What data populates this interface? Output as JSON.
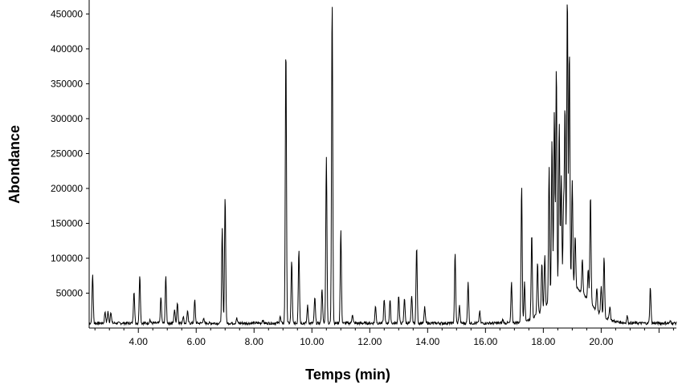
{
  "chart_data": {
    "type": "line",
    "title": "",
    "xlabel": "Temps (min)",
    "ylabel": "Abondance",
    "xlim": [
      2.3,
      22.6
    ],
    "ylim": [
      0,
      470000
    ],
    "grid": false,
    "legend": "none",
    "line_color": "#000000",
    "x_ticks": [
      4.0,
      6.0,
      8.0,
      10.0,
      12.0,
      14.0,
      16.0,
      18.0,
      20.0
    ],
    "x_tick_labels": [
      "4.00",
      "6.00",
      "8.00",
      "10.00",
      "12.00",
      "14.00",
      "16.00",
      "18.00",
      "20.00"
    ],
    "y_ticks": [
      50000,
      100000,
      150000,
      200000,
      250000,
      300000,
      350000,
      400000,
      450000
    ],
    "y_tick_labels": [
      "50000",
      "100000",
      "150000",
      "200000",
      "250000",
      "300000",
      "350000",
      "400000",
      "450000"
    ],
    "baseline": 5000,
    "peaks": [
      {
        "x": 2.42,
        "y": 75000
      },
      {
        "x": 2.85,
        "y": 22000
      },
      {
        "x": 2.95,
        "y": 22000
      },
      {
        "x": 3.05,
        "y": 22000
      },
      {
        "x": 3.85,
        "y": 52000
      },
      {
        "x": 4.05,
        "y": 75000
      },
      {
        "x": 4.4,
        "y": 10000
      },
      {
        "x": 4.78,
        "y": 42000
      },
      {
        "x": 4.95,
        "y": 72000
      },
      {
        "x": 5.25,
        "y": 25000
      },
      {
        "x": 5.35,
        "y": 35000
      },
      {
        "x": 5.55,
        "y": 15000
      },
      {
        "x": 5.7,
        "y": 22000
      },
      {
        "x": 5.95,
        "y": 38000
      },
      {
        "x": 6.25,
        "y": 12000
      },
      {
        "x": 6.9,
        "y": 140000
      },
      {
        "x": 7.0,
        "y": 188000
      },
      {
        "x": 7.4,
        "y": 12000
      },
      {
        "x": 8.3,
        "y": 10000
      },
      {
        "x": 8.9,
        "y": 15000
      },
      {
        "x": 9.1,
        "y": 403000
      },
      {
        "x": 9.3,
        "y": 95000
      },
      {
        "x": 9.55,
        "y": 112000
      },
      {
        "x": 9.85,
        "y": 30000
      },
      {
        "x": 10.1,
        "y": 42000
      },
      {
        "x": 10.35,
        "y": 55000
      },
      {
        "x": 10.5,
        "y": 245000
      },
      {
        "x": 10.7,
        "y": 470000
      },
      {
        "x": 11.0,
        "y": 138000
      },
      {
        "x": 11.4,
        "y": 18000
      },
      {
        "x": 12.2,
        "y": 30000
      },
      {
        "x": 12.5,
        "y": 40000
      },
      {
        "x": 12.7,
        "y": 38000
      },
      {
        "x": 13.0,
        "y": 45000
      },
      {
        "x": 13.2,
        "y": 42000
      },
      {
        "x": 13.45,
        "y": 45000
      },
      {
        "x": 13.62,
        "y": 115000
      },
      {
        "x": 13.9,
        "y": 28000
      },
      {
        "x": 14.95,
        "y": 105000
      },
      {
        "x": 15.1,
        "y": 30000
      },
      {
        "x": 15.4,
        "y": 65000
      },
      {
        "x": 15.8,
        "y": 22000
      },
      {
        "x": 16.6,
        "y": 10000
      },
      {
        "x": 16.9,
        "y": 62000
      },
      {
        "x": 17.25,
        "y": 200000
      },
      {
        "x": 17.35,
        "y": 60000
      },
      {
        "x": 17.6,
        "y": 128000
      },
      {
        "x": 17.8,
        "y": 80000
      },
      {
        "x": 17.95,
        "y": 75000
      },
      {
        "x": 18.05,
        "y": 80000
      },
      {
        "x": 18.2,
        "y": 200000
      },
      {
        "x": 18.3,
        "y": 235000
      },
      {
        "x": 18.38,
        "y": 270000
      },
      {
        "x": 18.45,
        "y": 332000
      },
      {
        "x": 18.55,
        "y": 245000
      },
      {
        "x": 18.62,
        "y": 165000
      },
      {
        "x": 18.7,
        "y": 120000
      },
      {
        "x": 18.75,
        "y": 262000
      },
      {
        "x": 18.83,
        "y": 425000
      },
      {
        "x": 18.9,
        "y": 345000
      },
      {
        "x": 19.0,
        "y": 155000
      },
      {
        "x": 19.1,
        "y": 78000
      },
      {
        "x": 19.35,
        "y": 55000
      },
      {
        "x": 19.55,
        "y": 50000
      },
      {
        "x": 19.63,
        "y": 162000
      },
      {
        "x": 19.85,
        "y": 38000
      },
      {
        "x": 20.0,
        "y": 45000
      },
      {
        "x": 20.1,
        "y": 92000
      },
      {
        "x": 20.3,
        "y": 25000
      },
      {
        "x": 20.9,
        "y": 15000
      },
      {
        "x": 21.7,
        "y": 57000
      },
      {
        "x": 22.4,
        "y": 8000
      }
    ]
  }
}
